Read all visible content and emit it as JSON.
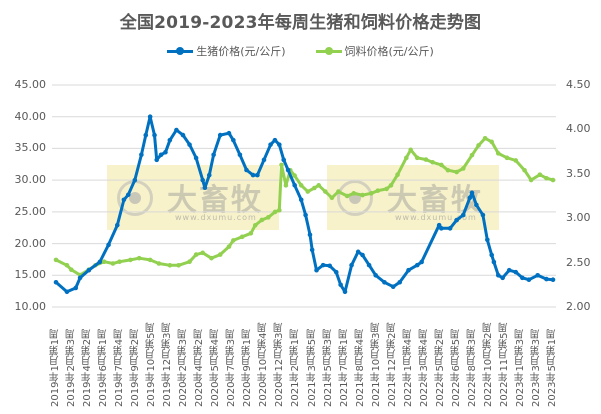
{
  "title": "全国2019-2023年每周生猪和饲料价格走势图",
  "legend": [
    {
      "name": "生猪价格(元/公斤)",
      "color": "#0070C0"
    },
    {
      "name": "饲料价格(元/公斤)",
      "color": "#92D050"
    }
  ],
  "watermark": {
    "brand": "大畜牧",
    "url": "www.dxumu.com"
  },
  "chart_data": {
    "type": "line",
    "title": "全国2019-2023年每周生猪和饲料价格走势图",
    "xlabel": "",
    "ylabel_left": "生猪价格(元/公斤)",
    "ylabel_right": "饲料价格(元/公斤)",
    "ylim_left": [
      10,
      45
    ],
    "ylim_right": [
      2.0,
      4.5
    ],
    "yticks_left": [
      "10.00",
      "15.00",
      "20.00",
      "25.00",
      "30.00",
      "35.00",
      "40.00",
      "45.00"
    ],
    "yticks_right": [
      "2.00",
      "2.50",
      "3.00",
      "3.50",
      "4.00",
      "4.50"
    ],
    "grid": true,
    "legend_position": "top",
    "x_tick_labels": [
      "2019年1月第1周",
      "2019年2月第3周",
      "2019年4月第2周",
      "2019年6月第1周",
      "2019年7月第4周",
      "2019年9月第2周",
      "2019年10月第5周",
      "2019年12月第3周",
      "2020年2月第3周",
      "2020年4月第2周",
      "2020年5月第4周",
      "2020年7月第3周",
      "2020年9月第1周",
      "2020年10月第4周",
      "2020年12月第3周",
      "2021年2月第1周",
      "2021年3月第5周",
      "2021年5月第3周",
      "2021年7月第1周",
      "2021年8月第4周",
      "2021年10月第3周",
      "2021年12月第2周",
      "2022年1月第4周",
      "2022年3月第4周",
      "2022年5月第2周",
      "2022年6月第5周",
      "2022年8月第3周",
      "2022年10月第2周",
      "2022年11月第5周",
      "2023年1月第3周",
      "2023年3月第3周",
      "2023年5月第1周"
    ],
    "x_range_weeks": [
      0,
      227
    ],
    "series": [
      {
        "name": "生猪价格(元/公斤)",
        "axis": "left",
        "color": "#0070C0",
        "x": [
          0,
          5,
          9,
          11,
          15,
          20,
          24,
          28,
          31,
          33,
          36,
          39,
          41,
          43,
          45,
          46,
          48,
          50,
          52,
          55,
          58,
          61,
          64,
          67,
          68,
          70,
          72,
          75,
          79,
          81,
          84,
          87,
          90,
          92,
          95,
          98,
          100,
          102,
          104,
          106,
          109,
          112,
          114,
          116,
          117,
          119,
          122,
          125,
          128,
          130,
          132,
          135,
          138,
          140,
          143,
          146,
          150,
          154,
          157,
          161,
          165,
          167,
          175,
          176,
          180,
          183,
          186,
          189,
          190,
          192,
          195,
          197,
          199,
          200,
          202,
          204,
          207,
          210,
          213,
          216,
          220,
          224,
          227
        ],
        "values": [
          13.9,
          12.4,
          13.0,
          14.6,
          15.8,
          17.1,
          19.8,
          22.9,
          26.9,
          27.7,
          30.0,
          34.0,
          37.1,
          40.0,
          37.1,
          33.2,
          34.0,
          34.4,
          36.3,
          37.9,
          37.1,
          35.6,
          33.5,
          30.0,
          28.8,
          30.8,
          34.0,
          37.1,
          37.4,
          36.3,
          34.0,
          31.6,
          30.8,
          30.8,
          33.2,
          35.6,
          36.3,
          35.6,
          33.2,
          31.6,
          29.2,
          26.9,
          24.5,
          21.4,
          19.0,
          15.8,
          16.6,
          16.5,
          15.5,
          13.5,
          12.4,
          16.6,
          18.7,
          18.2,
          16.6,
          15.0,
          13.9,
          13.2,
          13.9,
          15.8,
          16.6,
          17.1,
          22.9,
          22.4,
          22.4,
          23.7,
          24.5,
          27.2,
          28.0,
          26.1,
          24.5,
          20.6,
          18.2,
          17.1,
          15.0,
          14.6,
          15.8,
          15.5,
          14.6,
          14.3,
          15.0,
          14.4,
          14.3
        ]
      },
      {
        "name": "饲料价格(元/公斤)",
        "axis": "right",
        "color": "#92D050",
        "x": [
          0,
          5,
          7,
          11,
          15,
          18,
          22,
          26,
          29,
          34,
          38,
          43,
          47,
          52,
          56,
          61,
          64,
          67,
          71,
          75,
          79,
          81,
          85,
          89,
          91,
          94,
          97,
          100,
          102,
          103,
          105,
          107,
          109,
          112,
          115,
          118,
          120,
          123,
          126,
          129,
          133,
          136,
          140,
          144,
          147,
          151,
          153,
          156,
          160,
          162,
          165,
          169,
          172,
          176,
          179,
          183,
          186,
          190,
          193,
          196,
          199,
          202,
          206,
          210,
          214,
          217,
          221,
          224,
          227
        ],
        "values": [
          2.53,
          2.47,
          2.42,
          2.36,
          2.42,
          2.47,
          2.51,
          2.49,
          2.51,
          2.53,
          2.55,
          2.53,
          2.49,
          2.47,
          2.47,
          2.51,
          2.59,
          2.61,
          2.55,
          2.59,
          2.68,
          2.75,
          2.79,
          2.83,
          2.92,
          2.98,
          3.01,
          3.07,
          3.09,
          3.6,
          3.37,
          3.54,
          3.48,
          3.37,
          3.3,
          3.34,
          3.37,
          3.3,
          3.23,
          3.3,
          3.25,
          3.28,
          3.26,
          3.28,
          3.31,
          3.33,
          3.37,
          3.49,
          3.68,
          3.77,
          3.68,
          3.66,
          3.63,
          3.6,
          3.54,
          3.52,
          3.56,
          3.71,
          3.82,
          3.9,
          3.86,
          3.73,
          3.68,
          3.65,
          3.54,
          3.43,
          3.49,
          3.45,
          3.43
        ]
      }
    ]
  }
}
